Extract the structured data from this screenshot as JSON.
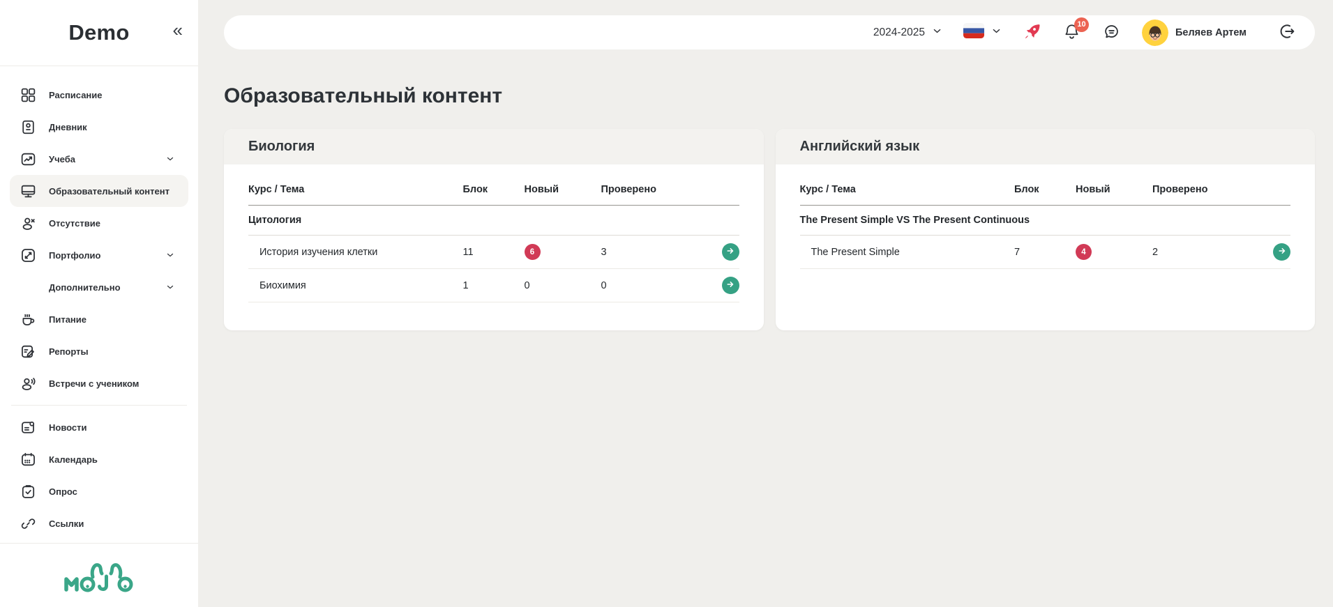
{
  "app": {
    "title": "Demo",
    "collapse_glyph": "«"
  },
  "sidebar": {
    "sections": [
      {
        "items": [
          {
            "key": "raspisanie",
            "label": "Расписание",
            "icon": "grid-icon",
            "expandable": false,
            "active": false
          },
          {
            "key": "dnevnik",
            "label": "Дневник",
            "icon": "journal-icon",
            "expandable": false,
            "active": false
          },
          {
            "key": "ucheba",
            "label": "Учеба",
            "icon": "chart-icon",
            "expandable": true,
            "active": false
          },
          {
            "key": "obrazovatelnyy-kontent",
            "label": "Образовательный контент",
            "icon": "monitor-icon",
            "expandable": false,
            "active": true
          },
          {
            "key": "otsutstvie",
            "label": "Отсутствие",
            "icon": "user-x-icon",
            "expandable": false,
            "active": false
          },
          {
            "key": "portfolio",
            "label": "Портфолио",
            "icon": "expand-icon",
            "expandable": true,
            "active": false
          },
          {
            "key": "dopolnitelno",
            "label": "Дополнительно",
            "icon": null,
            "expandable": true,
            "active": false
          },
          {
            "key": "pitanie",
            "label": "Питание",
            "icon": "coffee-cup-icon",
            "expandable": false,
            "active": false
          },
          {
            "key": "reporty",
            "label": "Репорты",
            "icon": "report-icon",
            "expandable": false,
            "active": false
          },
          {
            "key": "vstrechi-s-uchenikom",
            "label": "Встречи с учеником",
            "icon": "user-voice-icon",
            "expandable": false,
            "active": false
          }
        ]
      },
      {
        "items": [
          {
            "key": "novosti",
            "label": "Новости",
            "icon": "news-icon",
            "expandable": false,
            "active": false
          },
          {
            "key": "kalendar",
            "label": "Календарь",
            "icon": "calendar-icon",
            "expandable": false,
            "active": false
          },
          {
            "key": "opros",
            "label": "Опрос",
            "icon": "survey-icon",
            "expandable": false,
            "active": false
          },
          {
            "key": "ssylki",
            "label": "Ссылки",
            "icon": "link-icon",
            "expandable": false,
            "active": false
          }
        ]
      }
    ],
    "logo_text": "MOJO"
  },
  "topbar": {
    "school_year": "2024-2025",
    "language_flag": "russian-flag-icon",
    "notification_count": "10",
    "user_name": "Беляев Артем",
    "icon_buttons": [
      "rocket-icon",
      "bell-icon",
      "chat-bubble-icon",
      "logout-icon"
    ]
  },
  "main": {
    "title": "Образовательный контент",
    "cards": [
      {
        "title": "Биология",
        "columns": [
          "Курс / Тема",
          "Блок",
          "Новый",
          "Проверено"
        ],
        "rows": [
          {
            "type": "group",
            "name": "Цитология"
          },
          {
            "type": "topic",
            "name": "История изучения клетки",
            "block": "11",
            "new": "6",
            "new_is_badge": true,
            "checked": "3"
          },
          {
            "type": "topic",
            "name": "Биохимия",
            "block": "1",
            "new": "0",
            "new_is_badge": false,
            "checked": "0"
          }
        ]
      },
      {
        "title": "Английский язык",
        "columns": [
          "Курс / Тема",
          "Блок",
          "Новый",
          "Проверено"
        ],
        "rows": [
          {
            "type": "group",
            "name": "The Present Simple VS The Present Continuous"
          },
          {
            "type": "topic",
            "name": "The Present Simple",
            "block": "7",
            "new": "4",
            "new_is_badge": true,
            "checked": "2"
          }
        ]
      }
    ]
  },
  "colors": {
    "accent_teal": "#35a184",
    "badge_crimson": "#d13a56",
    "notification_coral": "#ec6352",
    "rocket_red": "#e23a52",
    "page_background": "#f0efec",
    "sidebar_background": "#ffffff"
  }
}
